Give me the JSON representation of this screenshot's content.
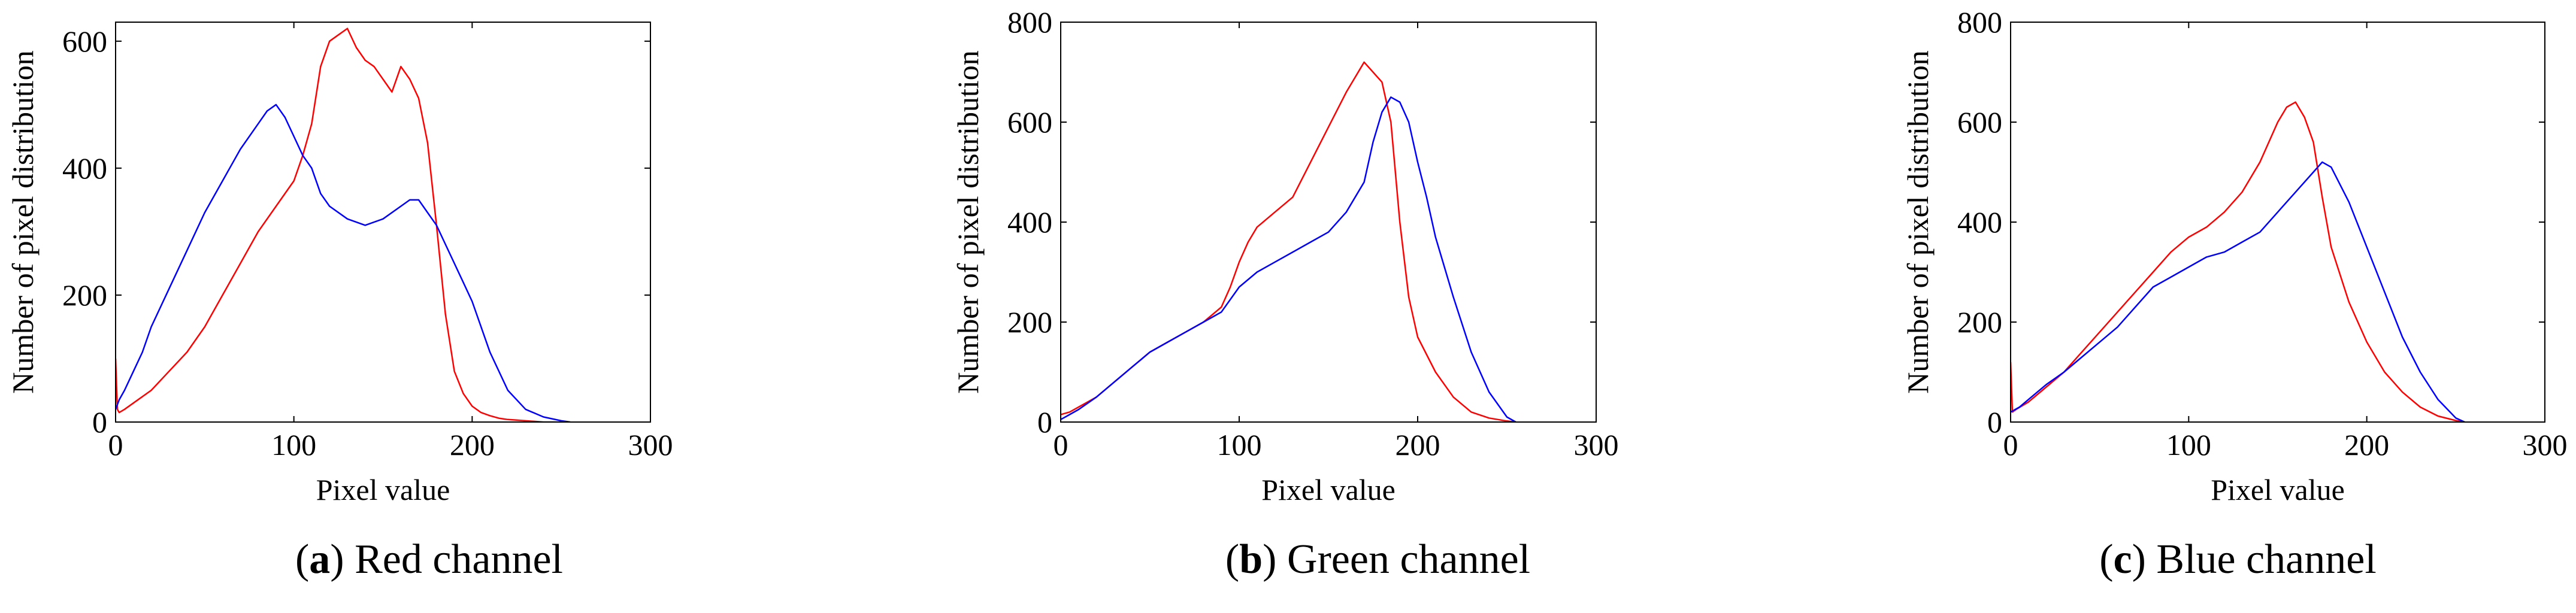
{
  "chart_data": [
    {
      "type": "line",
      "panel_label": "a",
      "caption": "Red channel",
      "xlabel": "Pixel value",
      "ylabel": "Number of pixel distribution",
      "xlim": [
        0,
        300
      ],
      "ylim": [
        0,
        630
      ],
      "xticks": [
        0,
        100,
        200,
        300
      ],
      "yticks": [
        0,
        200,
        400,
        600
      ],
      "grid": false,
      "series": [
        {
          "name": "red",
          "color": "#ff0000",
          "x": [
            0,
            1,
            2,
            5,
            10,
            20,
            30,
            40,
            50,
            60,
            70,
            80,
            90,
            100,
            105,
            110,
            115,
            120,
            125,
            130,
            135,
            140,
            145,
            150,
            155,
            160,
            165,
            170,
            175,
            180,
            185,
            190,
            195,
            200,
            205,
            210,
            215,
            220,
            225,
            230,
            235,
            240,
            245,
            250,
            255
          ],
          "y": [
            100,
            20,
            15,
            20,
            30,
            50,
            80,
            110,
            150,
            200,
            250,
            300,
            340,
            380,
            420,
            470,
            560,
            600,
            610,
            620,
            590,
            570,
            560,
            540,
            520,
            560,
            540,
            510,
            440,
            310,
            170,
            80,
            45,
            25,
            15,
            10,
            6,
            4,
            3,
            2,
            1,
            0,
            0,
            0,
            0
          ]
        },
        {
          "name": "blue",
          "color": "#0000ff",
          "x": [
            0,
            2,
            5,
            10,
            15,
            20,
            30,
            40,
            50,
            60,
            70,
            80,
            85,
            90,
            95,
            100,
            105,
            110,
            115,
            120,
            130,
            140,
            150,
            160,
            165,
            170,
            175,
            180,
            185,
            190,
            195,
            200,
            210,
            220,
            230,
            240,
            250,
            255
          ],
          "y": [
            20,
            35,
            50,
            80,
            110,
            150,
            210,
            270,
            330,
            380,
            430,
            470,
            490,
            500,
            480,
            450,
            420,
            400,
            360,
            340,
            320,
            310,
            320,
            340,
            350,
            350,
            330,
            310,
            280,
            250,
            220,
            190,
            110,
            50,
            20,
            8,
            2,
            0
          ]
        }
      ]
    },
    {
      "type": "line",
      "panel_label": "b",
      "caption": "Green channel",
      "xlabel": "Pixel value",
      "ylabel": "Number of pixel distribution",
      "xlim": [
        0,
        300
      ],
      "ylim": [
        0,
        800
      ],
      "xticks": [
        0,
        100,
        200,
        300
      ],
      "yticks": [
        0,
        200,
        400,
        600,
        800
      ],
      "grid": false,
      "series": [
        {
          "name": "red",
          "color": "#ff0000",
          "x": [
            0,
            5,
            10,
            20,
            30,
            40,
            50,
            60,
            70,
            80,
            90,
            95,
            100,
            105,
            110,
            120,
            130,
            140,
            150,
            160,
            165,
            170,
            175,
            180,
            185,
            190,
            195,
            200,
            210,
            220,
            230,
            240,
            250,
            255
          ],
          "y": [
            15,
            20,
            30,
            50,
            80,
            110,
            140,
            160,
            180,
            200,
            230,
            270,
            320,
            360,
            390,
            420,
            450,
            520,
            590,
            660,
            690,
            720,
            700,
            680,
            600,
            400,
            250,
            170,
            100,
            50,
            20,
            8,
            2,
            0
          ],
          "_note": "peak around 170-175"
        },
        {
          "name": "blue",
          "color": "#0000ff",
          "x": [
            0,
            5,
            10,
            20,
            30,
            40,
            50,
            60,
            70,
            80,
            90,
            100,
            110,
            120,
            130,
            140,
            150,
            160,
            170,
            175,
            180,
            185,
            190,
            195,
            200,
            205,
            210,
            220,
            230,
            240,
            250,
            255
          ],
          "y": [
            5,
            15,
            25,
            50,
            80,
            110,
            140,
            160,
            180,
            200,
            220,
            270,
            300,
            320,
            340,
            360,
            380,
            420,
            480,
            560,
            620,
            650,
            640,
            600,
            520,
            450,
            370,
            250,
            140,
            60,
            10,
            0
          ]
        }
      ]
    },
    {
      "type": "line",
      "panel_label": "c",
      "caption": "Blue channel",
      "xlabel": "Pixel value",
      "ylabel": "Number of pixel distribution",
      "xlim": [
        0,
        300
      ],
      "ylim": [
        0,
        800
      ],
      "xticks": [
        0,
        100,
        200,
        300
      ],
      "yticks": [
        0,
        200,
        400,
        600,
        800
      ],
      "grid": false,
      "series": [
        {
          "name": "red",
          "color": "#ff0000",
          "x": [
            0,
            1,
            3,
            10,
            20,
            30,
            40,
            50,
            60,
            70,
            80,
            90,
            100,
            110,
            120,
            130,
            140,
            150,
            155,
            160,
            165,
            170,
            175,
            180,
            190,
            200,
            210,
            220,
            230,
            240,
            250,
            255
          ],
          "y": [
            120,
            20,
            25,
            40,
            70,
            100,
            140,
            180,
            220,
            260,
            300,
            340,
            370,
            390,
            420,
            460,
            520,
            600,
            630,
            640,
            610,
            560,
            450,
            350,
            240,
            160,
            100,
            60,
            30,
            12,
            3,
            0
          ]
        },
        {
          "name": "blue",
          "color": "#0000ff",
          "x": [
            0,
            5,
            10,
            20,
            30,
            40,
            50,
            60,
            70,
            80,
            90,
            100,
            110,
            120,
            130,
            140,
            150,
            160,
            170,
            175,
            180,
            190,
            200,
            210,
            220,
            230,
            240,
            250,
            255
          ],
          "y": [
            20,
            30,
            45,
            75,
            100,
            130,
            160,
            190,
            230,
            270,
            290,
            310,
            330,
            340,
            360,
            380,
            420,
            460,
            500,
            520,
            510,
            440,
            350,
            260,
            170,
            100,
            45,
            8,
            0
          ]
        }
      ]
    }
  ]
}
